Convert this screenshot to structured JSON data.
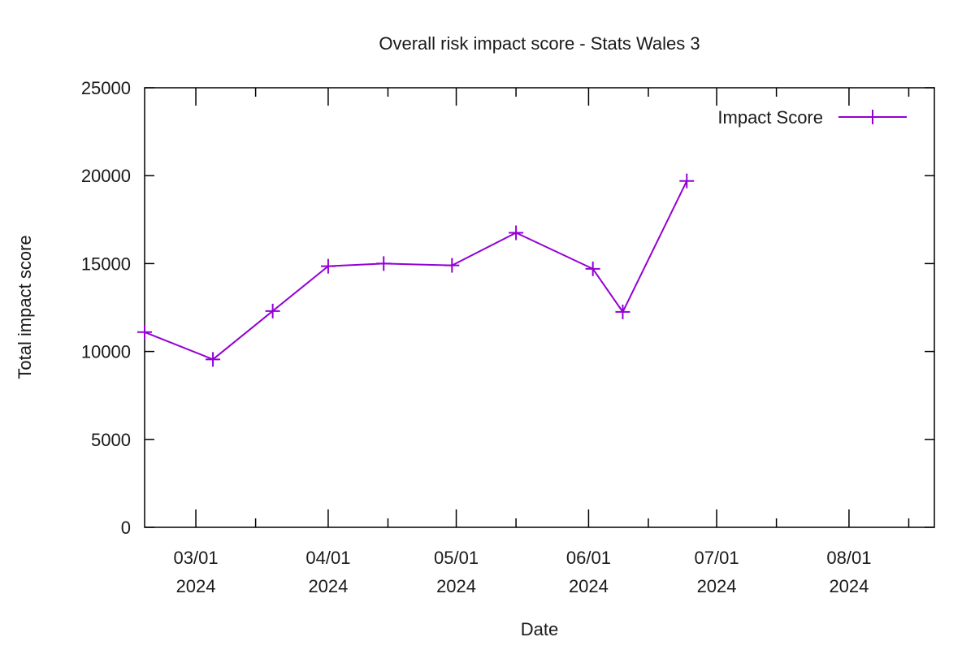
{
  "chart_data": {
    "type": "line",
    "title": "Overall risk impact score - Stats Wales 3",
    "xlabel": "Date",
    "ylabel": "Total impact score",
    "xlim": [
      "2024-02-18",
      "2024-08-21"
    ],
    "ylim": [
      0,
      25000
    ],
    "yticks": [
      0,
      5000,
      10000,
      15000,
      20000,
      25000
    ],
    "xticks": [
      {
        "date": "2024-03-01",
        "line1": "03/01",
        "line2": "2024"
      },
      {
        "date": "2024-04-01",
        "line1": "04/01",
        "line2": "2024"
      },
      {
        "date": "2024-05-01",
        "line1": "05/01",
        "line2": "2024"
      },
      {
        "date": "2024-06-01",
        "line1": "06/01",
        "line2": "2024"
      },
      {
        "date": "2024-07-01",
        "line1": "07/01",
        "line2": "2024"
      },
      {
        "date": "2024-08-01",
        "line1": "08/01",
        "line2": "2024"
      }
    ],
    "minor_ticks": [
      "2024-02-15",
      "2024-03-15",
      "2024-04-15",
      "2024-05-15",
      "2024-06-15",
      "2024-07-15",
      "2024-08-15"
    ],
    "grid": false,
    "legend": "top-right",
    "series": [
      {
        "name": "Impact Score",
        "color": "#9400d3",
        "marker": "plus",
        "x": [
          "2024-02-18",
          "2024-03-05",
          "2024-03-19",
          "2024-04-01",
          "2024-04-14",
          "2024-04-30",
          "2024-05-15",
          "2024-06-02",
          "2024-06-09",
          "2024-06-24"
        ],
        "y": [
          11100,
          9550,
          12300,
          14850,
          15000,
          14900,
          16750,
          14700,
          12250,
          19700
        ]
      }
    ]
  }
}
